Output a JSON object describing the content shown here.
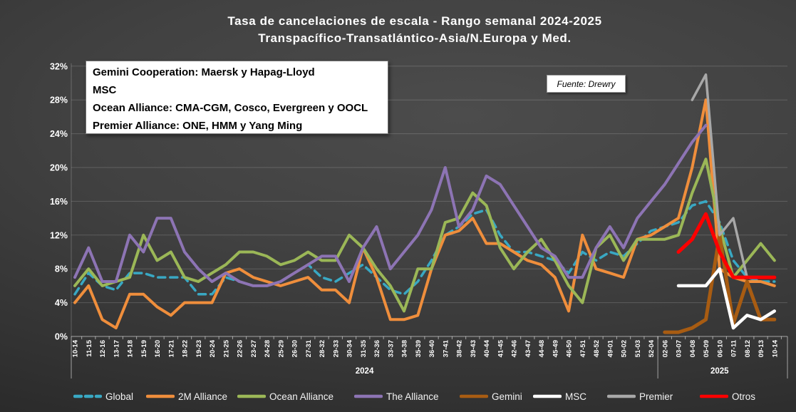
{
  "title": {
    "line1": "Tasa de cancelaciones de escala - Rango semanal 2024-2025",
    "line2": "Transpacífico-Transatlántico-Asia/N.Europa y Med."
  },
  "info_box": {
    "lines": [
      "Gemini Cooperation: Maersk y Hapag-Lloyd",
      "MSC",
      "Ocean Alliance: CMA-CGM, Cosco, Evergreen y OOCL",
      "Premier Alliance: ONE, HMM y Yang Ming"
    ]
  },
  "source_box": {
    "text": "Fuente: Drewry"
  },
  "chart_data": {
    "type": "line",
    "title": "Tasa de cancelaciones de escala - Rango semanal 2024-2025 Transpacífico-Transatlántico-Asia/N.Europa y Med.",
    "xlabel": "",
    "ylabel": "",
    "ylim": [
      0,
      32
    ],
    "grid": true,
    "legend_position": "bottom",
    "y_tick_labels": [
      "0%",
      "4%",
      "8%",
      "12%",
      "16%",
      "20%",
      "24%",
      "28%",
      "32%"
    ],
    "categories": [
      "10-14",
      "11-15",
      "12-16",
      "13-17",
      "14-18",
      "15-19",
      "16-20",
      "17-21",
      "18-22",
      "19-23",
      "20-24",
      "21-25",
      "22-26",
      "23-27",
      "24-28",
      "25-29",
      "26-30",
      "27-31",
      "28-32",
      "29-33",
      "30-34",
      "31-35",
      "32-36",
      "33-37",
      "34-38",
      "35-39",
      "36-40",
      "37-41",
      "38-42",
      "39-43",
      "40-44",
      "41-45",
      "42-46",
      "43-47",
      "44-48",
      "45-49",
      "46-50",
      "47-51",
      "48-52",
      "49-01",
      "50-02",
      "51-03",
      "52-04",
      "02-06",
      "03-07",
      "04-08",
      "05-09",
      "06-10",
      "07-11",
      "08-12",
      "09-13",
      "10-14"
    ],
    "year_groups": [
      {
        "label": "2024",
        "start": 0,
        "end": 42
      },
      {
        "label": "2025",
        "start": 43,
        "end": 51
      }
    ],
    "series": [
      {
        "name": "Global",
        "color": "#39a8c3",
        "dash": true,
        "width": 3.5,
        "values": [
          5,
          7.5,
          6,
          5.5,
          7.5,
          7.5,
          7,
          7,
          7,
          5,
          5,
          7,
          6.5,
          6,
          6,
          6.5,
          7.5,
          8.5,
          7,
          6.5,
          7.5,
          8.5,
          7,
          5.5,
          5,
          6.5,
          9,
          12,
          13,
          14.5,
          15,
          12,
          10,
          10,
          9.5,
          9,
          7.5,
          10,
          9,
          10,
          9.5,
          11,
          12.5,
          13,
          13.5,
          15.5,
          16,
          13.5,
          9,
          7,
          6.5,
          6.5
        ]
      },
      {
        "name": "2M Alliance",
        "color": "#ef8e3c",
        "dash": false,
        "width": 4,
        "values": [
          4,
          6,
          2,
          1,
          5,
          5,
          3.5,
          2.5,
          4,
          4,
          4,
          7.5,
          8,
          7,
          6.5,
          6,
          6.5,
          7,
          5.5,
          5.5,
          4,
          10.5,
          7,
          2,
          2,
          2.5,
          8,
          12,
          12.5,
          14,
          11,
          11,
          10,
          9,
          8.5,
          7,
          3,
          12,
          8,
          7.5,
          7,
          11.5,
          12,
          13,
          14,
          20,
          28,
          8,
          7,
          6.5,
          6.5,
          6
        ]
      },
      {
        "name": "Ocean Alliance",
        "color": "#9bb757",
        "dash": false,
        "width": 4,
        "values": [
          6,
          8,
          6,
          6.5,
          7,
          12,
          9,
          10,
          7,
          6.5,
          7.5,
          8.5,
          10,
          10,
          9.5,
          8.5,
          9,
          10,
          9,
          9,
          12,
          10.5,
          8,
          6,
          3,
          8,
          8,
          13.5,
          14,
          17,
          15.5,
          10.5,
          8,
          10,
          11.5,
          9,
          6,
          4,
          10.5,
          12,
          9,
          11.5,
          11.5,
          11.5,
          12,
          17,
          21,
          13,
          7,
          9,
          11,
          9
        ]
      },
      {
        "name": "The Alliance",
        "color": "#8d74b4",
        "dash": false,
        "width": 4,
        "values": [
          7,
          10.5,
          6.5,
          6.5,
          12,
          10,
          14,
          14,
          10,
          8,
          6.5,
          7.5,
          6.5,
          6,
          6,
          6.5,
          7.5,
          8.5,
          9.5,
          9.5,
          6.5,
          10.5,
          13,
          8,
          10,
          12,
          15,
          20,
          13,
          15,
          19,
          18,
          15.5,
          13,
          10.5,
          9.5,
          7,
          7,
          10.5,
          13,
          10.5,
          14,
          16,
          18,
          20.5,
          23,
          25,
          null,
          null,
          null,
          null,
          null
        ]
      },
      {
        "name": "Gemini",
        "color": "#a85c12",
        "dash": false,
        "width": 5,
        "values": [
          null,
          null,
          null,
          null,
          null,
          null,
          null,
          null,
          null,
          null,
          null,
          null,
          null,
          null,
          null,
          null,
          null,
          null,
          null,
          null,
          null,
          null,
          null,
          null,
          null,
          null,
          null,
          null,
          null,
          null,
          null,
          null,
          null,
          null,
          null,
          null,
          null,
          null,
          null,
          null,
          null,
          null,
          null,
          0.5,
          0.5,
          1,
          2,
          12,
          1.5,
          6.5,
          2,
          2
        ]
      },
      {
        "name": "MSC",
        "color": "#ffffff",
        "dash": false,
        "width": 4.5,
        "values": [
          null,
          null,
          null,
          null,
          null,
          null,
          null,
          null,
          null,
          null,
          null,
          null,
          null,
          null,
          null,
          null,
          null,
          null,
          null,
          null,
          null,
          null,
          null,
          null,
          null,
          null,
          null,
          null,
          null,
          null,
          null,
          null,
          null,
          null,
          null,
          null,
          null,
          null,
          null,
          null,
          null,
          null,
          null,
          null,
          6,
          6,
          6,
          8,
          1,
          2.5,
          2,
          3
        ]
      },
      {
        "name": "Premier",
        "color": "#a8a8a8",
        "dash": false,
        "width": 3.5,
        "values": [
          null,
          null,
          null,
          null,
          null,
          null,
          null,
          null,
          null,
          null,
          null,
          null,
          null,
          null,
          null,
          null,
          null,
          null,
          null,
          null,
          null,
          null,
          null,
          null,
          null,
          null,
          null,
          null,
          null,
          null,
          null,
          null,
          null,
          null,
          null,
          null,
          null,
          null,
          null,
          null,
          null,
          null,
          null,
          null,
          null,
          28,
          31,
          12,
          14,
          7,
          null,
          null
        ]
      },
      {
        "name": "Otros",
        "color": "#fe0000",
        "dash": false,
        "width": 5,
        "values": [
          null,
          null,
          null,
          null,
          null,
          null,
          null,
          null,
          null,
          null,
          null,
          null,
          null,
          null,
          null,
          null,
          null,
          null,
          null,
          null,
          null,
          null,
          null,
          null,
          null,
          null,
          null,
          null,
          null,
          null,
          null,
          null,
          null,
          null,
          null,
          null,
          null,
          null,
          null,
          null,
          null,
          null,
          null,
          null,
          10,
          11.5,
          14.5,
          10,
          7,
          7,
          7,
          7
        ]
      }
    ]
  }
}
